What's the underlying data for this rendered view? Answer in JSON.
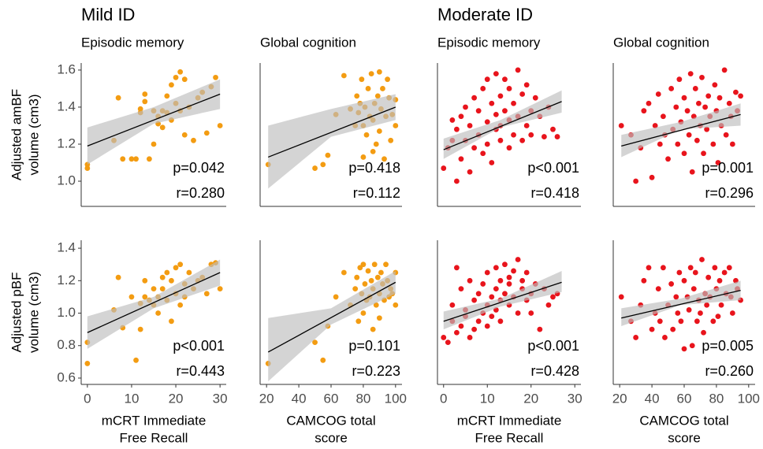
{
  "group_titles": [
    "Mild ID",
    "Moderate ID"
  ],
  "chart_data": [
    {
      "type": "scatter",
      "title": "Episodic memory",
      "ylabel": [
        "Adjusted amBF",
        "volume (cm3)"
      ],
      "color": "#f39c12",
      "x": [
        0,
        0,
        6,
        7,
        8,
        10,
        11,
        12,
        12,
        13,
        13,
        14,
        15,
        15,
        16,
        16,
        17,
        17,
        18,
        18,
        19,
        19,
        20,
        20,
        21,
        21,
        22,
        22,
        23,
        24,
        25,
        26,
        27,
        28,
        29,
        30
      ],
      "y": [
        1.07,
        1.09,
        1.22,
        1.45,
        1.12,
        1.12,
        1.12,
        1.37,
        1.39,
        1.43,
        1.47,
        1.12,
        1.38,
        1.2,
        1.31,
        1.35,
        1.29,
        1.38,
        1.37,
        1.46,
        1.52,
        1.33,
        1.56,
        1.42,
        1.59,
        1.38,
        1.55,
        1.25,
        1.4,
        1.22,
        1.45,
        1.48,
        1.26,
        1.51,
        1.56,
        1.3
      ],
      "xlim": [
        -1.4,
        31.4
      ],
      "ylim": [
        0.864,
        1.638
      ],
      "yticks": [
        {
          "value": 1,
          "label": "1.0"
        },
        1.2,
        1.4,
        1.6
      ],
      "fit": {
        "x": [
          0,
          30
        ],
        "y": [
          1.19,
          1.47
        ],
        "color": "#000000"
      },
      "band": {
        "x": [
          0,
          15,
          30
        ],
        "lower": [
          1.09,
          1.31,
          1.39
        ],
        "upper": [
          1.29,
          1.4,
          1.55
        ],
        "color": "#bdbdbd"
      },
      "annotations": [
        "p=0.042",
        "r=0.280"
      ]
    },
    {
      "type": "scatter",
      "title": "Global cognition",
      "color": "#f39c12",
      "x": [
        21,
        50,
        55,
        58,
        63,
        68,
        72,
        75,
        76,
        77,
        78,
        79,
        80,
        80,
        81,
        82,
        83,
        84,
        85,
        86,
        86,
        87,
        88,
        89,
        90,
        90,
        91,
        92,
        93,
        94,
        95,
        96,
        97,
        98,
        100,
        100
      ],
      "y": [
        1.09,
        1.07,
        1.09,
        1.14,
        1.36,
        1.57,
        1.39,
        1.3,
        1.46,
        1.37,
        1.42,
        1.55,
        1.13,
        1.3,
        1.4,
        1.25,
        1.5,
        1.35,
        1.58,
        1.16,
        1.33,
        1.42,
        1.2,
        1.46,
        1.59,
        1.27,
        1.39,
        1.5,
        1.12,
        1.35,
        1.55,
        1.45,
        1.22,
        1.36,
        1.44,
        1.3
      ],
      "xlim": [
        16,
        104
      ],
      "ylim": [
        0.864,
        1.638
      ],
      "fit": {
        "x": [
          21,
          100
        ],
        "y": [
          1.13,
          1.4
        ],
        "color": "#000000"
      },
      "band": {
        "x": [
          21,
          60,
          100
        ],
        "lower": [
          0.96,
          1.24,
          1.33
        ],
        "upper": [
          1.3,
          1.39,
          1.47
        ],
        "color": "#bdbdbd"
      },
      "annotations": [
        "p=0.418",
        "r=0.112"
      ]
    },
    {
      "type": "scatter",
      "title": "Episodic memory",
      "color": "#e8141c",
      "x": [
        0,
        1,
        2,
        2,
        3,
        3,
        4,
        4,
        5,
        5,
        6,
        6,
        7,
        7,
        8,
        8,
        9,
        9,
        10,
        10,
        10,
        11,
        11,
        12,
        12,
        12,
        13,
        13,
        13,
        14,
        14,
        15,
        15,
        15,
        16,
        16,
        17,
        17,
        18,
        18,
        19,
        19,
        20,
        20,
        21,
        22,
        23,
        24,
        25,
        26
      ],
      "y": [
        1.07,
        1.18,
        1.33,
        1.22,
        1.0,
        1.28,
        1.12,
        1.35,
        1.22,
        1.4,
        1.05,
        1.3,
        1.18,
        1.45,
        1.25,
        1.38,
        1.15,
        1.5,
        1.2,
        1.32,
        1.55,
        1.1,
        1.42,
        1.28,
        1.36,
        1.58,
        1.22,
        1.46,
        1.3,
        1.38,
        1.55,
        1.18,
        1.33,
        1.5,
        1.25,
        1.42,
        1.35,
        1.6,
        1.22,
        1.47,
        1.3,
        1.52,
        1.38,
        1.25,
        1.45,
        1.35,
        1.24,
        1.4,
        1.28,
        1.24
      ],
      "xlim": [
        -1.4,
        31.4
      ],
      "ylim": [
        0.864,
        1.638
      ],
      "fit": {
        "x": [
          0,
          27
        ],
        "y": [
          1.17,
          1.43
        ],
        "color": "#000000"
      },
      "band": {
        "x": [
          0,
          13,
          27
        ],
        "lower": [
          1.12,
          1.29,
          1.37
        ],
        "upper": [
          1.23,
          1.33,
          1.49
        ],
        "color": "#bdbdbd"
      },
      "annotations": [
        "p<0.001",
        "r=0.418"
      ]
    },
    {
      "type": "scatter",
      "title": "Global cognition",
      "color": "#e8141c",
      "x": [
        21,
        27,
        30,
        33,
        35,
        38,
        40,
        42,
        44,
        45,
        47,
        48,
        50,
        52,
        53,
        55,
        56,
        57,
        58,
        60,
        60,
        62,
        63,
        64,
        65,
        66,
        67,
        68,
        69,
        70,
        71,
        72,
        73,
        74,
        75,
        76,
        78,
        79,
        80,
        81,
        82,
        83,
        85,
        86,
        88,
        89,
        90,
        92,
        93,
        95
      ],
      "y": [
        1.3,
        1.25,
        1.0,
        1.18,
        1.38,
        1.42,
        1.02,
        1.3,
        1.47,
        1.2,
        1.35,
        1.25,
        1.12,
        1.5,
        1.28,
        1.4,
        1.2,
        1.55,
        1.32,
        1.15,
        1.45,
        1.38,
        1.25,
        1.58,
        1.05,
        1.35,
        1.5,
        1.22,
        1.42,
        1.3,
        1.56,
        1.15,
        1.4,
        1.28,
        1.46,
        1.35,
        1.2,
        1.52,
        1.38,
        1.1,
        1.45,
        1.3,
        1.6,
        1.25,
        1.42,
        1.35,
        1.2,
        1.48,
        1.38,
        1.46
      ],
      "xlim": [
        16,
        104
      ],
      "ylim": [
        0.864,
        1.638
      ],
      "fit": {
        "x": [
          21,
          95
        ],
        "y": [
          1.19,
          1.36
        ],
        "color": "#000000"
      },
      "band": {
        "x": [
          21,
          58,
          95
        ],
        "lower": [
          1.13,
          1.28,
          1.3
        ],
        "upper": [
          1.25,
          1.32,
          1.42
        ],
        "color": "#bdbdbd"
      },
      "annotations": [
        "p=0.001",
        "r=0.296"
      ]
    },
    {
      "type": "scatter",
      "ylabel": [
        "Adjusted pBF",
        "volume (cm3)"
      ],
      "xlabel": [
        "mCRT Immediate",
        "Free Recall"
      ],
      "color": "#f39c12",
      "x": [
        0,
        0,
        6,
        7,
        8,
        10,
        11,
        12,
        12,
        13,
        13,
        14,
        15,
        15,
        16,
        16,
        17,
        17,
        18,
        18,
        19,
        19,
        20,
        20,
        21,
        21,
        22,
        22,
        23,
        24,
        25,
        26,
        27,
        28,
        29,
        30
      ],
      "y": [
        0.69,
        0.82,
        1.02,
        1.22,
        0.91,
        1.1,
        0.71,
        0.9,
        1.06,
        1.2,
        1.1,
        1.08,
        1.05,
        1.15,
        1.0,
        1.1,
        1.22,
        1.15,
        1.08,
        1.25,
        0.95,
        1.2,
        1.12,
        1.28,
        1.05,
        1.3,
        1.18,
        1.1,
        1.25,
        1.15,
        1.2,
        1.22,
        1.12,
        1.3,
        1.31,
        1.15
      ],
      "xlim": [
        -1.4,
        31.4
      ],
      "ylim": [
        0.561,
        1.449
      ],
      "xticks": [
        0,
        10,
        20,
        30
      ],
      "yticks": [
        0.6,
        0.8,
        {
          "value": 1,
          "label": "1.0"
        },
        1.2,
        1.4
      ],
      "fit": {
        "x": [
          0,
          30
        ],
        "y": [
          0.88,
          1.25
        ],
        "color": "#000000"
      },
      "band": {
        "x": [
          0,
          15,
          30
        ],
        "lower": [
          0.78,
          1.03,
          1.17
        ],
        "upper": [
          0.98,
          1.1,
          1.33
        ],
        "color": "#bdbdbd"
      },
      "annotations": [
        "p<0.001",
        "r=0.443"
      ]
    },
    {
      "type": "scatter",
      "xlabel": [
        "CAMCOG total",
        "score"
      ],
      "color": "#f39c12",
      "x": [
        21,
        50,
        55,
        58,
        63,
        68,
        72,
        75,
        76,
        77,
        78,
        79,
        80,
        80,
        81,
        82,
        83,
        84,
        85,
        86,
        86,
        87,
        88,
        89,
        90,
        90,
        91,
        92,
        93,
        94,
        95,
        96,
        97,
        98,
        100,
        100
      ],
      "y": [
        0.69,
        0.82,
        0.71,
        0.92,
        1.1,
        1.25,
        1.05,
        1.15,
        1.22,
        0.95,
        1.28,
        1.12,
        1.3,
        1.0,
        1.18,
        1.08,
        1.26,
        1.1,
        1.2,
        0.9,
        1.15,
        1.3,
        1.05,
        1.22,
        1.12,
        0.97,
        1.25,
        1.18,
        1.08,
        1.3,
        1.2,
        1.1,
        1.15,
        1.12,
        1.25,
        1.05
      ],
      "xlim": [
        16,
        104
      ],
      "ylim": [
        0.561,
        1.449
      ],
      "xticks": [
        20,
        40,
        60,
        80,
        100
      ],
      "fit": {
        "x": [
          21,
          100
        ],
        "y": [
          0.76,
          1.19
        ],
        "color": "#000000"
      },
      "band": {
        "x": [
          21,
          60,
          100
        ],
        "lower": [
          0.58,
          0.93,
          1.12
        ],
        "upper": [
          0.97,
          1.03,
          1.26
        ],
        "color": "#bdbdbd"
      },
      "annotations": [
        "p=0.101",
        "r=0.223"
      ]
    },
    {
      "type": "scatter",
      "xlabel": [
        "mCRT Immediate",
        "Free Recall"
      ],
      "color": "#e8141c",
      "x": [
        0,
        1,
        2,
        2,
        3,
        3,
        4,
        4,
        5,
        5,
        6,
        6,
        7,
        7,
        8,
        8,
        9,
        9,
        10,
        10,
        10,
        11,
        11,
        12,
        12,
        12,
        13,
        13,
        13,
        14,
        14,
        15,
        15,
        15,
        16,
        16,
        17,
        17,
        18,
        18,
        19,
        19,
        20,
        20,
        21,
        22,
        23,
        24,
        25,
        26
      ],
      "y": [
        0.85,
        0.82,
        0.95,
        1.05,
        0.88,
        1.28,
        0.92,
        1.15,
        0.98,
        1.02,
        0.85,
        1.2,
        0.9,
        1.08,
        0.95,
        1.12,
        1.0,
        1.18,
        0.92,
        1.05,
        1.25,
        0.98,
        1.1,
        1.15,
        1.02,
        1.28,
        1.08,
        1.2,
        0.95,
        1.12,
        1.3,
        1.05,
        1.18,
        1.22,
        1.1,
        1.26,
        1.0,
        1.33,
        1.15,
        1.2,
        1.08,
        1.25,
        1.12,
        1.0,
        1.18,
        0.9,
        1.15,
        1.05,
        1.1,
        1.12
      ],
      "xlim": [
        -1.4,
        31.4
      ],
      "ylim": [
        0.561,
        1.449
      ],
      "xticks": [
        0,
        10,
        20,
        30
      ],
      "fit": {
        "x": [
          0,
          27
        ],
        "y": [
          0.95,
          1.19
        ],
        "color": "#000000"
      },
      "band": {
        "x": [
          0,
          13,
          27
        ],
        "lower": [
          0.9,
          1.04,
          1.13
        ],
        "upper": [
          1.01,
          1.09,
          1.26
        ],
        "color": "#bdbdbd"
      },
      "annotations": [
        "p<0.001",
        "r=0.428"
      ]
    },
    {
      "type": "scatter",
      "xlabel": [
        "CAMCOG total",
        "score"
      ],
      "color": "#e8141c",
      "x": [
        21,
        27,
        30,
        33,
        35,
        38,
        40,
        42,
        44,
        45,
        47,
        48,
        50,
        52,
        53,
        55,
        56,
        57,
        58,
        60,
        60,
        62,
        63,
        64,
        65,
        66,
        67,
        68,
        69,
        70,
        71,
        72,
        73,
        74,
        75,
        76,
        78,
        79,
        80,
        81,
        82,
        83,
        85,
        86,
        88,
        89,
        90,
        92,
        93,
        95
      ],
      "y": [
        1.1,
        0.95,
        0.85,
        1.05,
        1.2,
        1.28,
        0.9,
        1.0,
        1.15,
        0.95,
        1.28,
        0.85,
        1.05,
        1.18,
        0.9,
        1.1,
        1.0,
        1.25,
        0.95,
        0.78,
        1.2,
        1.1,
        1.02,
        1.28,
        0.8,
        1.15,
        1.25,
        0.95,
        1.08,
        1.0,
        1.33,
        0.88,
        1.12,
        1.05,
        1.22,
        1.1,
        0.95,
        1.28,
        1.15,
        0.98,
        1.2,
        1.05,
        1.25,
        1.12,
        1.28,
        1.1,
        1.0,
        1.2,
        1.15,
        1.08
      ],
      "xlim": [
        16,
        104
      ],
      "ylim": [
        0.561,
        1.449
      ],
      "xticks": [
        20,
        40,
        60,
        80,
        100
      ],
      "fit": {
        "x": [
          21,
          95
        ],
        "y": [
          0.97,
          1.14
        ],
        "color": "#000000"
      },
      "band": {
        "x": [
          21,
          58,
          95
        ],
        "lower": [
          0.92,
          1.05,
          1.08
        ],
        "upper": [
          1.03,
          1.09,
          1.2
        ],
        "color": "#bdbdbd"
      },
      "annotations": [
        "p=0.005",
        "r=0.260"
      ]
    }
  ]
}
